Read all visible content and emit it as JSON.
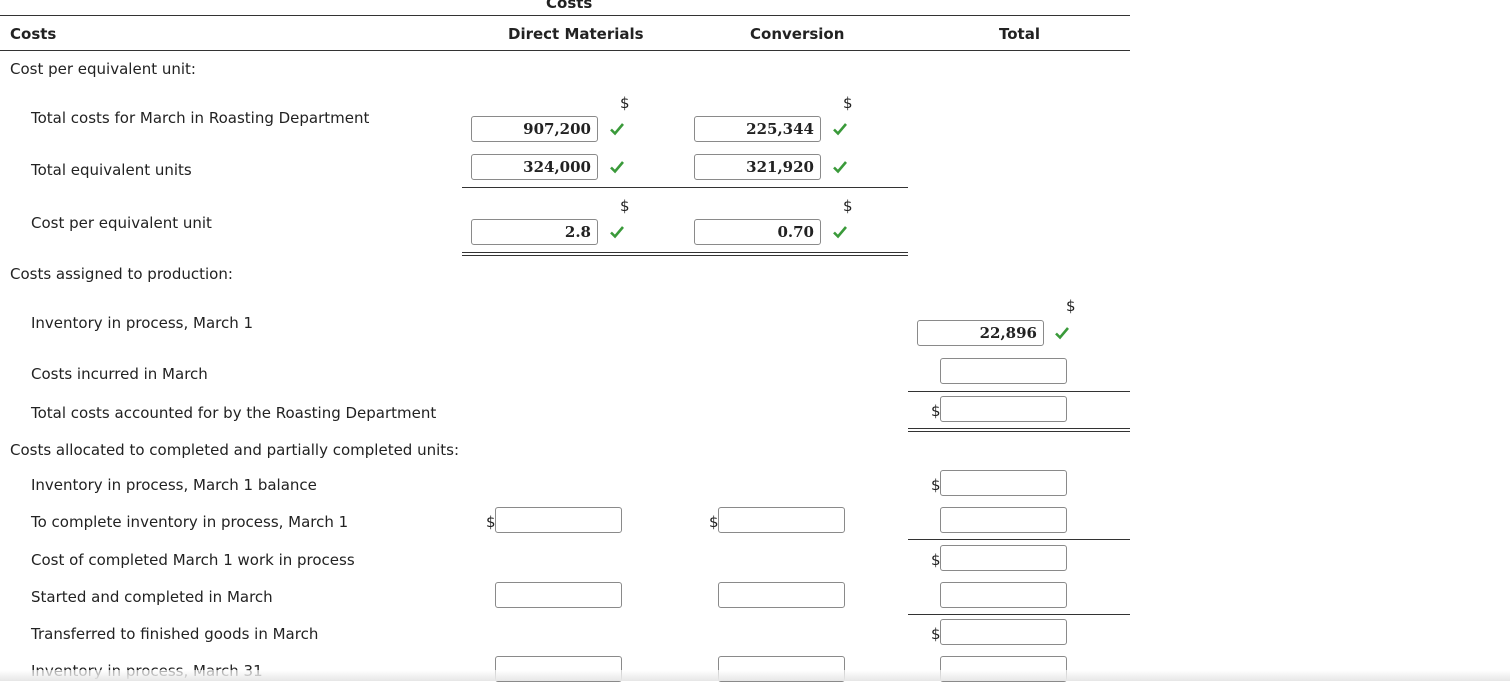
{
  "header": {
    "group_title": "Costs",
    "costs": "Costs",
    "direct_materials": "Direct Materials",
    "conversion": "Conversion",
    "total": "Total"
  },
  "sections": {
    "cost_per_eu": "Cost per equivalent unit:",
    "assigned": "Costs assigned to production:",
    "allocated": "Costs allocated to completed and partially completed units:"
  },
  "rows": {
    "total_costs_march": "Total costs for March in Roasting Department",
    "total_eu": "Total equivalent units",
    "cost_per_eu": "Cost per equivalent unit",
    "inv_march1": "Inventory in process, March 1",
    "costs_incurred": "Costs incurred in March",
    "total_accounted": "Total costs accounted for by the Roasting Department",
    "inv_march1_balance": "Inventory in process, March 1 balance",
    "to_complete": "To complete inventory in process, March 1",
    "cost_completed": "Cost of completed March 1 work in process",
    "started_completed": "Started and completed in March",
    "transferred": "Transferred to finished goods in March",
    "inv_march31": "Inventory in process, March 31"
  },
  "values": {
    "dm_total_costs": "907,200",
    "conv_total_costs": "225,344",
    "dm_total_eu": "324,000",
    "conv_total_eu": "321,920",
    "dm_cost_per_eu": "2.8",
    "conv_cost_per_eu": "0.70",
    "total_inv_march1": "22,896",
    "total_costs_incurred": "",
    "total_accounted": "",
    "total_inv_balance": "",
    "dm_to_complete": "",
    "conv_to_complete": "",
    "total_to_complete": "",
    "total_cost_completed": "",
    "dm_started": "",
    "conv_started": "",
    "total_started": "",
    "total_transferred": "",
    "dm_inv_march31": "",
    "conv_inv_march31": "",
    "total_inv_march31": ""
  },
  "symbols": {
    "dollar": "$"
  },
  "colors": {
    "check": "#3a9a3a",
    "border": "#8a8a8a"
  }
}
